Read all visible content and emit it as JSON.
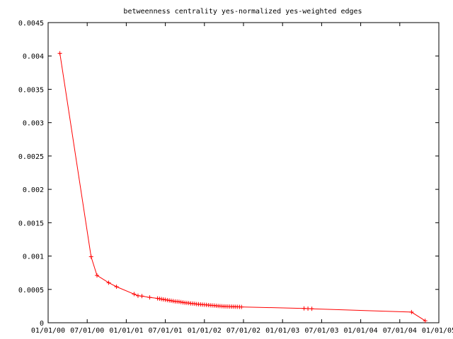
{
  "chart_data": {
    "type": "line",
    "title": "betweenness centrality yes-normalized yes-weighted edges",
    "xlabel": "",
    "ylabel": "",
    "ylim": [
      0,
      0.0045
    ],
    "grid": false,
    "legend": "none",
    "yticks": [
      "0",
      "0.0005",
      "0.001",
      "0.0015",
      "0.002",
      "0.0025",
      "0.003",
      "0.0035",
      "0.004",
      "0.0045"
    ],
    "xticks": [
      "01/01/00",
      "07/01/00",
      "01/01/01",
      "07/01/01",
      "01/01/02",
      "07/01/02",
      "01/01/03",
      "07/01/03",
      "01/01/04",
      "07/01/04",
      "01/01/05"
    ],
    "x_start": "01/01/00",
    "x_step_months": 6,
    "series": [
      {
        "color": "#ff0000",
        "marker": "+",
        "x": [
          0.3,
          1.1,
          1.25,
          1.55,
          1.75,
          2.2,
          2.3,
          2.4,
          2.6,
          2.8,
          2.85,
          2.9,
          2.95,
          3.0,
          3.05,
          3.1,
          3.15,
          3.2,
          3.25,
          3.3,
          3.35,
          3.4,
          3.45,
          3.5,
          3.55,
          3.6,
          3.65,
          3.7,
          3.75,
          3.8,
          3.85,
          3.9,
          3.95,
          4.0,
          4.05,
          4.1,
          4.15,
          4.2,
          4.25,
          4.3,
          4.35,
          4.4,
          4.45,
          4.5,
          4.55,
          4.6,
          4.65,
          4.7,
          4.75,
          4.8,
          4.85,
          4.9,
          4.95,
          6.55,
          6.65,
          6.75,
          9.3,
          9.65
        ],
        "y": [
          0.00404,
          0.00099,
          0.00071,
          0.0006,
          0.00054,
          0.00043,
          0.000405,
          0.0004,
          0.00038,
          0.000365,
          0.00036,
          0.000355,
          0.00035,
          0.000345,
          0.00034,
          0.000335,
          0.00033,
          0.000325,
          0.00032,
          0.000318,
          0.000315,
          0.00031,
          0.000305,
          0.0003,
          0.000298,
          0.000295,
          0.00029,
          0.000288,
          0.000285,
          0.00028,
          0.000278,
          0.000275,
          0.000272,
          0.00027,
          0.000268,
          0.000265,
          0.000262,
          0.00026,
          0.000258,
          0.000255,
          0.000252,
          0.00025,
          0.000248,
          0.000246,
          0.000245,
          0.000244,
          0.000243,
          0.000242,
          0.000241,
          0.00024,
          0.000239,
          0.000238,
          0.000237,
          0.000215,
          0.000212,
          0.00021,
          0.00016,
          3e-05
        ]
      }
    ]
  }
}
